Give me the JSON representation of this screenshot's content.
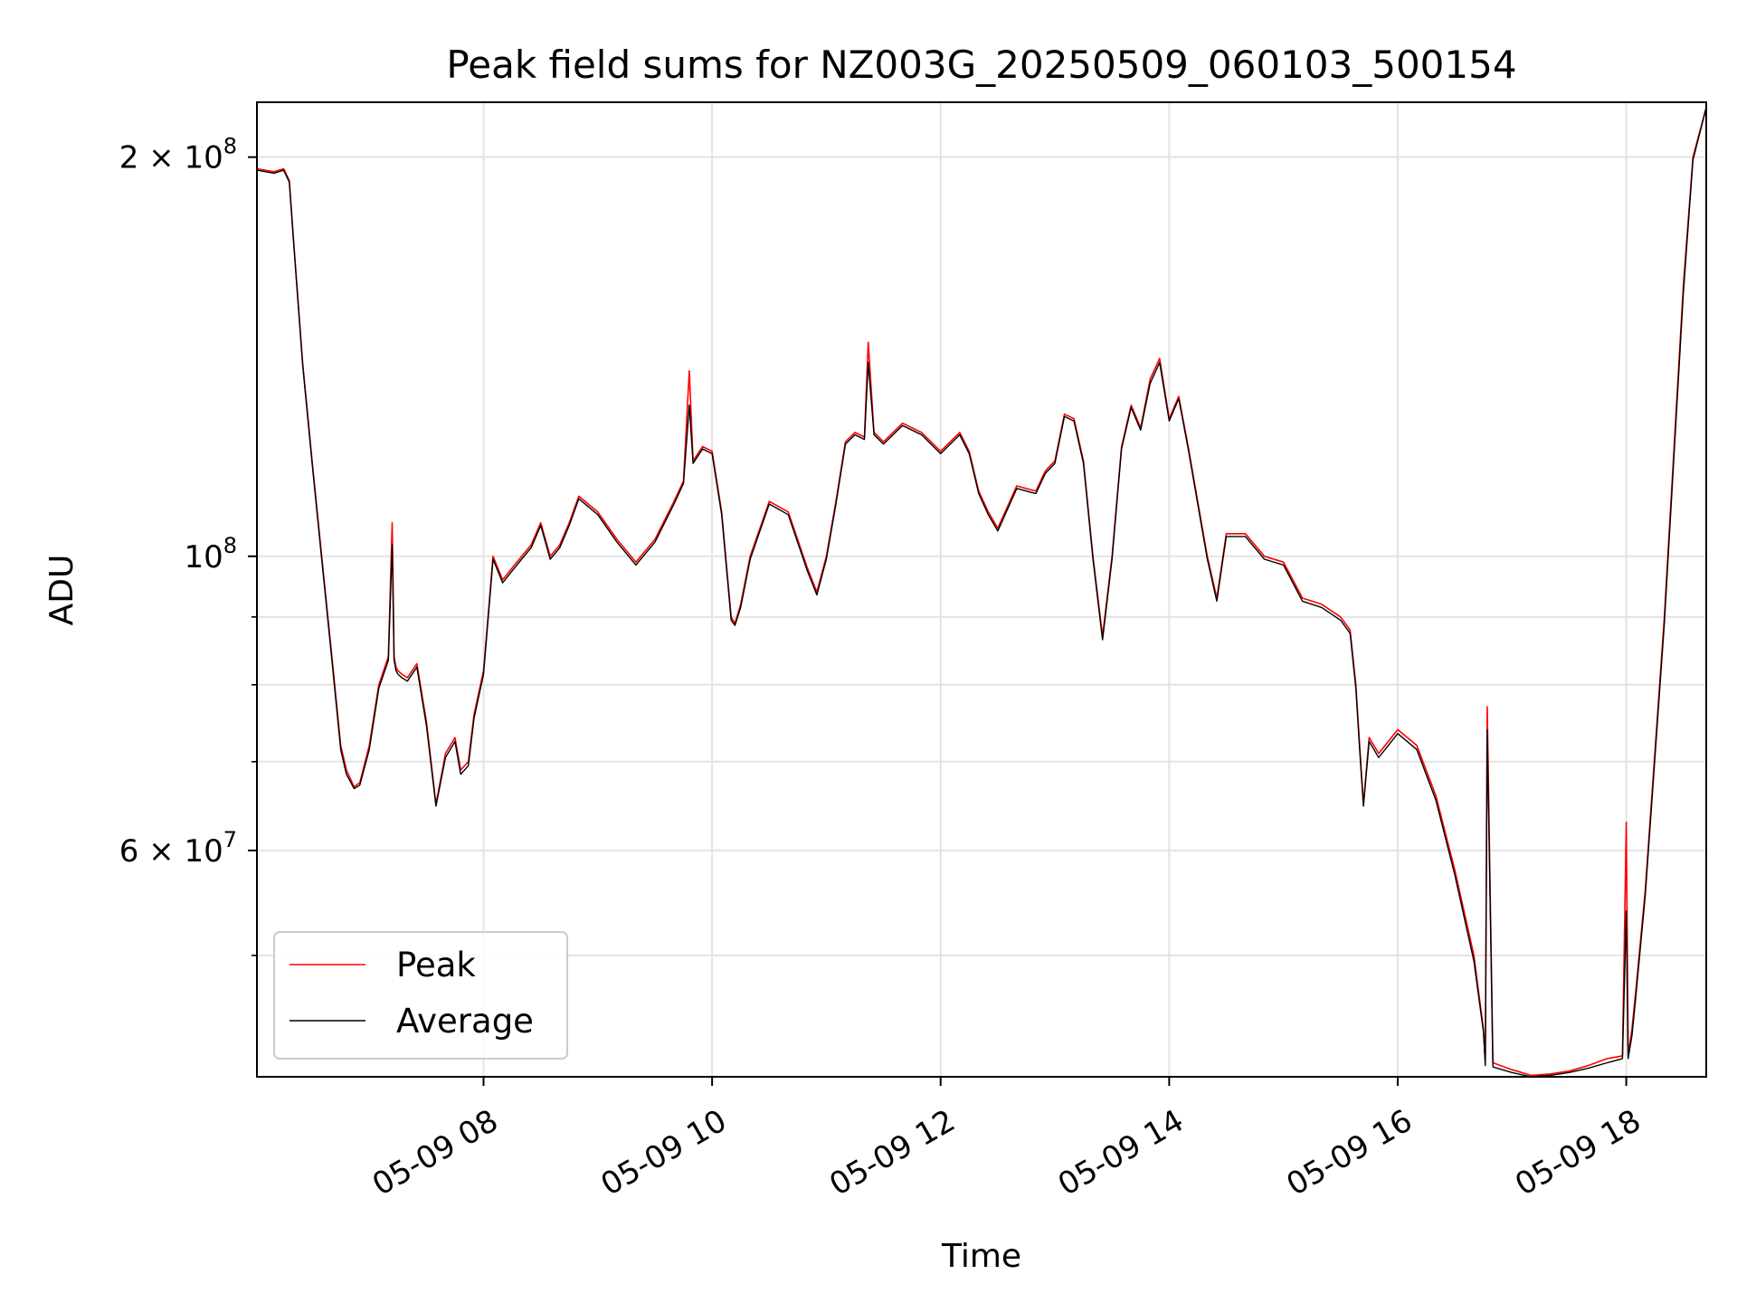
{
  "chart_data": {
    "type": "line",
    "title": "Peak field sums for NZ003G_20250509_060103_500154",
    "xlabel": "Time",
    "ylabel": "ADU",
    "yscale": "log",
    "grid": true,
    "legend_position": "lower-left",
    "xlim": [
      "2025-05-09 06:01",
      "2025-05-09 18:42"
    ],
    "ylim": [
      40500000,
      220000000
    ],
    "x_ticks": [
      {
        "value": "2025-05-09 08:00",
        "label": "05-09 08"
      },
      {
        "value": "2025-05-09 10:00",
        "label": "05-09 10"
      },
      {
        "value": "2025-05-09 12:00",
        "label": "05-09 12"
      },
      {
        "value": "2025-05-09 14:00",
        "label": "05-09 14"
      },
      {
        "value": "2025-05-09 16:00",
        "label": "05-09 16"
      },
      {
        "value": "2025-05-09 18:00",
        "label": "05-09 18"
      }
    ],
    "y_ticks": [
      {
        "value": 200000000,
        "base": "2 × 10",
        "exp": "8"
      },
      {
        "value": 100000000,
        "base": "10",
        "exp": "8"
      },
      {
        "value": 60000000,
        "base": "6 × 10",
        "exp": "7"
      }
    ],
    "y_minor_ticks": [
      50000000,
      70000000,
      80000000,
      90000000
    ],
    "series": [
      {
        "name": "Peak",
        "color": "#ff0000",
        "x": [
          "2025-05-09 06:01",
          "2025-05-09 06:10",
          "2025-05-09 06:15",
          "2025-05-09 06:18",
          "2025-05-09 06:20",
          "2025-05-09 06:22",
          "2025-05-09 06:25",
          "2025-05-09 06:30",
          "2025-05-09 06:35",
          "2025-05-09 06:40",
          "2025-05-09 06:45",
          "2025-05-09 06:48",
          "2025-05-09 06:52",
          "2025-05-09 06:55",
          "2025-05-09 07:00",
          "2025-05-09 07:05",
          "2025-05-09 07:10",
          "2025-05-09 07:12",
          "2025-05-09 07:13",
          "2025-05-09 07:14",
          "2025-05-09 07:15",
          "2025-05-09 07:17",
          "2025-05-09 07:20",
          "2025-05-09 07:25",
          "2025-05-09 07:30",
          "2025-05-09 07:35",
          "2025-05-09 07:40",
          "2025-05-09 07:45",
          "2025-05-09 07:48",
          "2025-05-09 07:52",
          "2025-05-09 07:55",
          "2025-05-09 08:00",
          "2025-05-09 08:05",
          "2025-05-09 08:10",
          "2025-05-09 08:15",
          "2025-05-09 08:20",
          "2025-05-09 08:25",
          "2025-05-09 08:30",
          "2025-05-09 08:35",
          "2025-05-09 08:40",
          "2025-05-09 08:45",
          "2025-05-09 08:50",
          "2025-05-09 09:00",
          "2025-05-09 09:10",
          "2025-05-09 09:20",
          "2025-05-09 09:30",
          "2025-05-09 09:40",
          "2025-05-09 09:45",
          "2025-05-09 09:48",
          "2025-05-09 09:50",
          "2025-05-09 09:55",
          "2025-05-09 10:00",
          "2025-05-09 10:05",
          "2025-05-09 10:10",
          "2025-05-09 10:12",
          "2025-05-09 10:15",
          "2025-05-09 10:20",
          "2025-05-09 10:30",
          "2025-05-09 10:40",
          "2025-05-09 10:50",
          "2025-05-09 10:55",
          "2025-05-09 11:00",
          "2025-05-09 11:05",
          "2025-05-09 11:10",
          "2025-05-09 11:15",
          "2025-05-09 11:20",
          "2025-05-09 11:22",
          "2025-05-09 11:25",
          "2025-05-09 11:30",
          "2025-05-09 11:40",
          "2025-05-09 11:50",
          "2025-05-09 12:00",
          "2025-05-09 12:10",
          "2025-05-09 12:15",
          "2025-05-09 12:20",
          "2025-05-09 12:25",
          "2025-05-09 12:30",
          "2025-05-09 12:40",
          "2025-05-09 12:50",
          "2025-05-09 12:55",
          "2025-05-09 13:00",
          "2025-05-09 13:05",
          "2025-05-09 13:10",
          "2025-05-09 13:15",
          "2025-05-09 13:20",
          "2025-05-09 13:25",
          "2025-05-09 13:30",
          "2025-05-09 13:35",
          "2025-05-09 13:40",
          "2025-05-09 13:45",
          "2025-05-09 13:50",
          "2025-05-09 13:55",
          "2025-05-09 14:00",
          "2025-05-09 14:05",
          "2025-05-09 14:10",
          "2025-05-09 14:15",
          "2025-05-09 14:20",
          "2025-05-09 14:25",
          "2025-05-09 14:30",
          "2025-05-09 14:40",
          "2025-05-09 14:50",
          "2025-05-09 15:00",
          "2025-05-09 15:10",
          "2025-05-09 15:20",
          "2025-05-09 15:30",
          "2025-05-09 15:35",
          "2025-05-09 15:38",
          "2025-05-09 15:40",
          "2025-05-09 15:42",
          "2025-05-09 15:45",
          "2025-05-09 15:50",
          "2025-05-09 16:00",
          "2025-05-09 16:10",
          "2025-05-09 16:20",
          "2025-05-09 16:30",
          "2025-05-09 16:40",
          "2025-05-09 16:45",
          "2025-05-09 16:46",
          "2025-05-09 16:47",
          "2025-05-09 16:50",
          "2025-05-09 17:00",
          "2025-05-09 17:10",
          "2025-05-09 17:20",
          "2025-05-09 17:30",
          "2025-05-09 17:40",
          "2025-05-09 17:50",
          "2025-05-09 17:58",
          "2025-05-09 18:00",
          "2025-05-09 18:01",
          "2025-05-09 18:03",
          "2025-05-09 18:05",
          "2025-05-09 18:10",
          "2025-05-09 18:20",
          "2025-05-09 18:30",
          "2025-05-09 18:35",
          "2025-05-09 18:42"
        ],
        "y": [
          196000000,
          195000000,
          196000000,
          192000000,
          175000000,
          160000000,
          140000000,
          118000000,
          100000000,
          85000000,
          72000000,
          69000000,
          67000000,
          67500000,
          72000000,
          80000000,
          84000000,
          106000000,
          84000000,
          82500000,
          82000000,
          81500000,
          81000000,
          83000000,
          75000000,
          65000000,
          71000000,
          73000000,
          69000000,
          70000000,
          76000000,
          82000000,
          100000000,
          96000000,
          98000000,
          100000000,
          102000000,
          106000000,
          100000000,
          102000000,
          106000000,
          111000000,
          108000000,
          103000000,
          99000000,
          103000000,
          110000000,
          114000000,
          138000000,
          118000000,
          121000000,
          120000000,
          108000000,
          90000000,
          89000000,
          92000000,
          100000000,
          110000000,
          108000000,
          98000000,
          94000000,
          100000000,
          110000000,
          122000000,
          124000000,
          123000000,
          145000000,
          124000000,
          122000000,
          126000000,
          124000000,
          120000000,
          124000000,
          120000000,
          112000000,
          108000000,
          105000000,
          113000000,
          112000000,
          116000000,
          118000000,
          128000000,
          127000000,
          118000000,
          100000000,
          87000000,
          100000000,
          121000000,
          130000000,
          125000000,
          136000000,
          141000000,
          127000000,
          132000000,
          121000000,
          110000000,
          100000000,
          93000000,
          104000000,
          104000000,
          100000000,
          99000000,
          93000000,
          92000000,
          90000000,
          88000000,
          80000000,
          72000000,
          65000000,
          73000000,
          71000000,
          74000000,
          72000000,
          66000000,
          58000000,
          50000000,
          44000000,
          41500000,
          77000000,
          41500000,
          41000000,
          40600000,
          40700000,
          40900000,
          41300000,
          41800000,
          42000000,
          63000000,
          42000000,
          44000000,
          47000000,
          56000000,
          90000000,
          160000000,
          200000000,
          218000000
        ]
      },
      {
        "name": "Average",
        "color": "#000000",
        "x": [
          "2025-05-09 06:01",
          "2025-05-09 06:10",
          "2025-05-09 06:15",
          "2025-05-09 06:18",
          "2025-05-09 06:20",
          "2025-05-09 06:22",
          "2025-05-09 06:25",
          "2025-05-09 06:30",
          "2025-05-09 06:35",
          "2025-05-09 06:40",
          "2025-05-09 06:45",
          "2025-05-09 06:48",
          "2025-05-09 06:52",
          "2025-05-09 06:55",
          "2025-05-09 07:00",
          "2025-05-09 07:05",
          "2025-05-09 07:10",
          "2025-05-09 07:12",
          "2025-05-09 07:13",
          "2025-05-09 07:14",
          "2025-05-09 07:15",
          "2025-05-09 07:17",
          "2025-05-09 07:20",
          "2025-05-09 07:25",
          "2025-05-09 07:30",
          "2025-05-09 07:35",
          "2025-05-09 07:40",
          "2025-05-09 07:45",
          "2025-05-09 07:48",
          "2025-05-09 07:52",
          "2025-05-09 07:55",
          "2025-05-09 08:00",
          "2025-05-09 08:05",
          "2025-05-09 08:10",
          "2025-05-09 08:15",
          "2025-05-09 08:20",
          "2025-05-09 08:25",
          "2025-05-09 08:30",
          "2025-05-09 08:35",
          "2025-05-09 08:40",
          "2025-05-09 08:45",
          "2025-05-09 08:50",
          "2025-05-09 09:00",
          "2025-05-09 09:10",
          "2025-05-09 09:20",
          "2025-05-09 09:30",
          "2025-05-09 09:40",
          "2025-05-09 09:45",
          "2025-05-09 09:48",
          "2025-05-09 09:50",
          "2025-05-09 09:55",
          "2025-05-09 10:00",
          "2025-05-09 10:05",
          "2025-05-09 10:10",
          "2025-05-09 10:12",
          "2025-05-09 10:15",
          "2025-05-09 10:20",
          "2025-05-09 10:30",
          "2025-05-09 10:40",
          "2025-05-09 10:50",
          "2025-05-09 10:55",
          "2025-05-09 11:00",
          "2025-05-09 11:05",
          "2025-05-09 11:10",
          "2025-05-09 11:15",
          "2025-05-09 11:20",
          "2025-05-09 11:22",
          "2025-05-09 11:25",
          "2025-05-09 11:30",
          "2025-05-09 11:40",
          "2025-05-09 11:50",
          "2025-05-09 12:00",
          "2025-05-09 12:10",
          "2025-05-09 12:15",
          "2025-05-09 12:20",
          "2025-05-09 12:25",
          "2025-05-09 12:30",
          "2025-05-09 12:40",
          "2025-05-09 12:50",
          "2025-05-09 12:55",
          "2025-05-09 13:00",
          "2025-05-09 13:05",
          "2025-05-09 13:10",
          "2025-05-09 13:15",
          "2025-05-09 13:20",
          "2025-05-09 13:25",
          "2025-05-09 13:30",
          "2025-05-09 13:35",
          "2025-05-09 13:40",
          "2025-05-09 13:45",
          "2025-05-09 13:50",
          "2025-05-09 13:55",
          "2025-05-09 14:00",
          "2025-05-09 14:05",
          "2025-05-09 14:10",
          "2025-05-09 14:15",
          "2025-05-09 14:20",
          "2025-05-09 14:25",
          "2025-05-09 14:30",
          "2025-05-09 14:40",
          "2025-05-09 14:50",
          "2025-05-09 15:00",
          "2025-05-09 15:10",
          "2025-05-09 15:20",
          "2025-05-09 15:30",
          "2025-05-09 15:35",
          "2025-05-09 15:38",
          "2025-05-09 15:40",
          "2025-05-09 15:42",
          "2025-05-09 15:45",
          "2025-05-09 15:50",
          "2025-05-09 16:00",
          "2025-05-09 16:10",
          "2025-05-09 16:20",
          "2025-05-09 16:30",
          "2025-05-09 16:40",
          "2025-05-09 16:45",
          "2025-05-09 16:46",
          "2025-05-09 16:47",
          "2025-05-09 16:50",
          "2025-05-09 17:00",
          "2025-05-09 17:10",
          "2025-05-09 17:20",
          "2025-05-09 17:30",
          "2025-05-09 17:40",
          "2025-05-09 17:50",
          "2025-05-09 17:58",
          "2025-05-09 18:00",
          "2025-05-09 18:01",
          "2025-05-09 18:03",
          "2025-05-09 18:05",
          "2025-05-09 18:10",
          "2025-05-09 18:20",
          "2025-05-09 18:30",
          "2025-05-09 18:35",
          "2025-05-09 18:42"
        ],
        "y": [
          195500000,
          194500000,
          195500000,
          191500000,
          174500000,
          159500000,
          139500000,
          117500000,
          99500000,
          84500000,
          71500000,
          68500000,
          66800000,
          67200000,
          71500000,
          79500000,
          83500000,
          102000000,
          83500000,
          82000000,
          81500000,
          81000000,
          80500000,
          82500000,
          74500000,
          64800000,
          70500000,
          72500000,
          68500000,
          69500000,
          75500000,
          81500000,
          99500000,
          95500000,
          97500000,
          99500000,
          101500000,
          105500000,
          99500000,
          101500000,
          105500000,
          110500000,
          107500000,
          102500000,
          98500000,
          102500000,
          109500000,
          113500000,
          130000000,
          117500000,
          120500000,
          119500000,
          107500000,
          89500000,
          88700000,
          91500000,
          99500000,
          109500000,
          107500000,
          97500000,
          93500000,
          99500000,
          109500000,
          121500000,
          123500000,
          122500000,
          140000000,
          123500000,
          121500000,
          125500000,
          123500000,
          119500000,
          123500000,
          119500000,
          111500000,
          107500000,
          104500000,
          112500000,
          111500000,
          115500000,
          117500000,
          127500000,
          126500000,
          117500000,
          99500000,
          86500000,
          99500000,
          120500000,
          129500000,
          124500000,
          135000000,
          140000000,
          126500000,
          131500000,
          120500000,
          109500000,
          99500000,
          92500000,
          103500000,
          103500000,
          99500000,
          98500000,
          92500000,
          91500000,
          89500000,
          87500000,
          79500000,
          71500000,
          64800000,
          72500000,
          70500000,
          73500000,
          71500000,
          65500000,
          57500000,
          49500000,
          43800000,
          41300000,
          74000000,
          41200000,
          40800000,
          40500000,
          40600000,
          40800000,
          41100000,
          41500000,
          41800000,
          54000000,
          41800000,
          43500000,
          46500000,
          55500000,
          89000000,
          158000000,
          199000000,
          218000000
        ]
      }
    ]
  }
}
